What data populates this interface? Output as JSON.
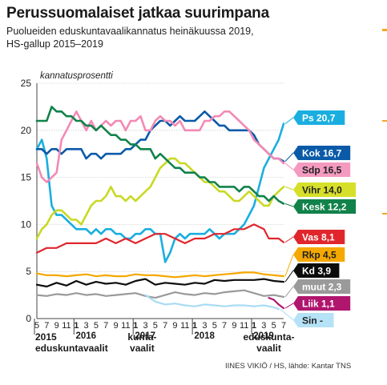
{
  "title": "Perussuomalaiset jatkaa suurimpana",
  "subtitle_line1": "Puolueiden eduskuntavaalikannatus heinäkuussa 2019,",
  "subtitle_line2": "HS-gallup 2015–2019",
  "credit": "IINES VIKIÖ / HS, lähde: Kantar TNS",
  "chart_data": {
    "type": "line",
    "ylabel": "kannatusprosentti",
    "ylim": [
      0,
      25
    ],
    "yticks": [
      0,
      5,
      10,
      15,
      20,
      25
    ],
    "xlim": [
      0,
      50
    ],
    "xticks": [
      {
        "x": 0,
        "label": "5",
        "bold": false
      },
      {
        "x": 2,
        "label": "7",
        "bold": false
      },
      {
        "x": 4,
        "label": "9",
        "bold": false
      },
      {
        "x": 6,
        "label": "11",
        "bold": false
      },
      {
        "x": 8,
        "label": "1",
        "bold": true
      },
      {
        "x": 10,
        "label": "3",
        "bold": false
      },
      {
        "x": 12,
        "label": "5",
        "bold": false
      },
      {
        "x": 14,
        "label": "7",
        "bold": false
      },
      {
        "x": 16,
        "label": "9",
        "bold": false
      },
      {
        "x": 18,
        "label": "11",
        "bold": false
      },
      {
        "x": 20,
        "label": "1",
        "bold": true
      },
      {
        "x": 22,
        "label": "3",
        "bold": false
      },
      {
        "x": 24,
        "label": "5",
        "bold": false
      },
      {
        "x": 26,
        "label": "7",
        "bold": false
      },
      {
        "x": 28,
        "label": "9",
        "bold": false
      },
      {
        "x": 30,
        "label": "11",
        "bold": false
      },
      {
        "x": 32,
        "label": "1",
        "bold": true
      },
      {
        "x": 34,
        "label": "3",
        "bold": false
      },
      {
        "x": 36,
        "label": "5",
        "bold": false
      },
      {
        "x": 38,
        "label": "7",
        "bold": false
      },
      {
        "x": 40,
        "label": "9",
        "bold": false
      },
      {
        "x": 42,
        "label": "11",
        "bold": false
      },
      {
        "x": 44,
        "label": "1",
        "bold": true
      },
      {
        "x": 46,
        "label": "3",
        "bold": false
      },
      {
        "x": 48,
        "label": "5",
        "bold": false
      },
      {
        "x": 50,
        "label": "7",
        "bold": false
      }
    ],
    "year_labels": [
      {
        "x": 0,
        "label": "2015"
      },
      {
        "x": 8,
        "label": "2016"
      },
      {
        "x": 20,
        "label": "2017"
      },
      {
        "x": 32,
        "label": "2018"
      },
      {
        "x": 44,
        "label": "2019"
      }
    ],
    "annotations": [
      {
        "x": 0,
        "lines": [
          "2015",
          "eduskuntavaalit"
        ]
      },
      {
        "x": 21,
        "lines": [
          "kunta-",
          "vaalit"
        ]
      },
      {
        "x": 47,
        "lines": [
          "eduskunta-",
          "vaalit"
        ]
      }
    ],
    "series": [
      {
        "name": "Ps",
        "label": "Ps 20,7",
        "color": "#1aaee0",
        "label_color": "#1aaee0",
        "text_color": "#ffffff",
        "width": 2.6,
        "x": [
          0,
          1,
          2,
          3,
          4,
          5,
          6,
          7,
          8,
          9,
          10,
          11,
          12,
          13,
          14,
          15,
          16,
          17,
          18,
          19,
          20,
          21,
          22,
          23,
          24,
          25,
          26,
          27,
          28,
          29,
          30,
          31,
          32,
          33,
          34,
          35,
          36,
          37,
          38,
          39,
          40,
          41,
          42,
          43,
          44,
          45,
          46,
          47,
          48,
          49,
          50
        ],
        "y": [
          18,
          19,
          17,
          12,
          11,
          11,
          10.5,
          10,
          9.5,
          9.5,
          9.5,
          9,
          9.5,
          9,
          9.5,
          9.5,
          9,
          9,
          8.5,
          8.5,
          9,
          9,
          9.5,
          9.5,
          9,
          9,
          6,
          7,
          8.5,
          9,
          8.5,
          9,
          9,
          9,
          9,
          9.5,
          9,
          8.5,
          9,
          9,
          9,
          9.5,
          10,
          11,
          12,
          14,
          16,
          17,
          18,
          19,
          20.7
        ]
      },
      {
        "name": "Kok",
        "label": "Kok 16,7",
        "color": "#0a5aa8",
        "label_color": "#0a5aa8",
        "text_color": "#ffffff",
        "width": 2.6,
        "x": [
          0,
          1,
          2,
          3,
          4,
          5,
          6,
          7,
          8,
          9,
          10,
          11,
          12,
          13,
          14,
          15,
          16,
          17,
          18,
          19,
          20,
          21,
          22,
          23,
          24,
          25,
          26,
          27,
          28,
          29,
          30,
          31,
          32,
          33,
          34,
          35,
          36,
          37,
          38,
          39,
          40,
          41,
          42,
          43,
          44,
          45,
          46,
          47,
          48,
          49,
          50
        ],
        "y": [
          18,
          18,
          17.5,
          18,
          18,
          17.5,
          18,
          18,
          18,
          18,
          17,
          17.5,
          17.5,
          17,
          17.5,
          17.5,
          17.5,
          17.5,
          18,
          18,
          18.5,
          19,
          19,
          20,
          20.5,
          21,
          21,
          20.5,
          21,
          21.5,
          21,
          21,
          21,
          21.5,
          22,
          21.5,
          21,
          20.5,
          20.5,
          20,
          20,
          20,
          20,
          20,
          19.5,
          18.5,
          18,
          17.5,
          17,
          17,
          16.7
        ]
      },
      {
        "name": "Sdp",
        "label": "Sdp 16,5",
        "color": "#f28ab4",
        "label_color": "#f49ac0",
        "text_color": "#222222",
        "width": 2.6,
        "x": [
          0,
          1,
          2,
          3,
          4,
          5,
          6,
          7,
          8,
          9,
          10,
          11,
          12,
          13,
          14,
          15,
          16,
          17,
          18,
          19,
          20,
          21,
          22,
          23,
          24,
          25,
          26,
          27,
          28,
          29,
          30,
          31,
          32,
          33,
          34,
          35,
          36,
          37,
          38,
          39,
          40,
          41,
          42,
          43,
          44,
          45,
          46,
          47,
          48,
          49,
          50
        ],
        "y": [
          16.5,
          15,
          14.5,
          15,
          15.5,
          19,
          20,
          21,
          22,
          21,
          20,
          21,
          20,
          20.5,
          21,
          20.5,
          21,
          21,
          20,
          21,
          21,
          21.5,
          20,
          20,
          21,
          21.5,
          21,
          21,
          20.5,
          21,
          20,
          20,
          20,
          20,
          21,
          21,
          21.5,
          21.5,
          22,
          22,
          21.5,
          21,
          20.5,
          20,
          19,
          18.5,
          18,
          17.5,
          17,
          17,
          16.5
        ]
      },
      {
        "name": "Vihr",
        "label": "Vihr 14,0",
        "color": "#c9d924",
        "label_color": "#d6e02a",
        "text_color": "#222222",
        "width": 2.6,
        "x": [
          0,
          1,
          2,
          3,
          4,
          5,
          6,
          7,
          8,
          9,
          10,
          11,
          12,
          13,
          14,
          15,
          16,
          17,
          18,
          19,
          20,
          21,
          22,
          23,
          24,
          25,
          26,
          27,
          28,
          29,
          30,
          31,
          32,
          33,
          34,
          35,
          36,
          37,
          38,
          39,
          40,
          41,
          42,
          43,
          44,
          45,
          46,
          47,
          48,
          49,
          50
        ],
        "y": [
          8.5,
          9.5,
          10,
          11,
          11.5,
          11.5,
          11,
          10.5,
          10.5,
          10,
          11,
          12,
          12.5,
          12.5,
          13,
          14,
          13,
          13,
          12.5,
          13,
          12.5,
          13,
          13.5,
          14,
          15,
          16,
          16.5,
          17,
          17,
          16.5,
          16.5,
          16,
          15.5,
          15,
          14.5,
          14.5,
          14,
          13.5,
          13.5,
          13,
          12.5,
          12.5,
          13,
          13.5,
          13,
          12.5,
          12,
          12,
          13,
          13.5,
          14
        ]
      },
      {
        "name": "Kesk",
        "label": "Kesk 12,2",
        "color": "#11824a",
        "label_color": "#11824a",
        "text_color": "#ffffff",
        "width": 2.6,
        "x": [
          0,
          1,
          2,
          3,
          4,
          5,
          6,
          7,
          8,
          9,
          10,
          11,
          12,
          13,
          14,
          15,
          16,
          17,
          18,
          19,
          20,
          21,
          22,
          23,
          24,
          25,
          26,
          27,
          28,
          29,
          30,
          31,
          32,
          33,
          34,
          35,
          36,
          37,
          38,
          39,
          40,
          41,
          42,
          43,
          44,
          45,
          46,
          47,
          48,
          49,
          50
        ],
        "y": [
          21,
          21,
          21,
          22.5,
          22,
          22,
          21.5,
          21.5,
          21,
          21,
          20.5,
          20.5,
          20,
          20.5,
          20,
          19.5,
          19.5,
          19,
          19,
          18.5,
          18.5,
          18,
          18,
          18,
          17,
          17.5,
          17,
          16.5,
          16,
          16,
          15.5,
          15.5,
          15.5,
          15,
          15,
          14.5,
          14.5,
          14,
          14,
          14,
          14,
          13.5,
          14,
          14,
          13.5,
          13,
          13,
          12.5,
          13,
          12.5,
          12.2
        ]
      },
      {
        "name": "Vas",
        "label": "Vas 8,1",
        "color": "#e0262c",
        "label_color": "#e0262c",
        "text_color": "#ffffff",
        "width": 2.2,
        "x": [
          0,
          2,
          4,
          6,
          8,
          10,
          12,
          14,
          16,
          18,
          20,
          22,
          24,
          26,
          28,
          30,
          32,
          34,
          36,
          38,
          40,
          42,
          44,
          46,
          47,
          48,
          49,
          50
        ],
        "y": [
          7,
          7.5,
          7.5,
          8,
          8,
          8,
          8,
          8.5,
          8,
          8.5,
          8,
          8.5,
          9,
          9,
          8.5,
          8,
          8.5,
          8.5,
          9,
          9,
          9.5,
          9.5,
          10,
          9.5,
          8.5,
          8.5,
          8.5,
          8.1
        ]
      },
      {
        "name": "Rkp",
        "label": "Rkp 4,5",
        "color": "#f5a800",
        "label_color": "#f5a800",
        "text_color": "#222222",
        "width": 2.2,
        "x": [
          0,
          2,
          4,
          6,
          8,
          10,
          12,
          14,
          16,
          18,
          20,
          22,
          24,
          26,
          28,
          30,
          32,
          34,
          36,
          38,
          40,
          42,
          44,
          46,
          48,
          50
        ],
        "y": [
          4.8,
          4.6,
          4.6,
          4.5,
          4.6,
          4.7,
          4.5,
          4.6,
          4.5,
          4.5,
          4.7,
          4.6,
          4.6,
          4.5,
          4.4,
          4.5,
          4.6,
          4.5,
          4.6,
          4.7,
          4.8,
          4.9,
          4.9,
          4.7,
          4.6,
          4.5
        ]
      },
      {
        "name": "Kd",
        "label": "Kd 3,9",
        "color": "#0c0c0c",
        "label_color": "#0c0c0c",
        "text_color": "#ffffff",
        "width": 2.2,
        "x": [
          0,
          2,
          4,
          6,
          8,
          10,
          12,
          14,
          16,
          18,
          20,
          22,
          24,
          26,
          28,
          30,
          32,
          34,
          36,
          38,
          40,
          42,
          44,
          46,
          48,
          50
        ],
        "y": [
          3.6,
          3.4,
          3.8,
          3.5,
          4,
          3.6,
          3.9,
          3.7,
          3.8,
          3.6,
          4,
          4.2,
          3.6,
          3.8,
          3.7,
          3.6,
          3.8,
          3.7,
          4.1,
          4,
          4.1,
          4.1,
          4.1,
          4.2,
          4,
          3.9
        ]
      },
      {
        "name": "muut",
        "label": "muut 2,3",
        "color": "#9a9a9a",
        "label_color": "#9a9a9a",
        "text_color": "#ffffff",
        "width": 2.2,
        "x": [
          0,
          2,
          4,
          6,
          8,
          10,
          12,
          14,
          16,
          18,
          20,
          22,
          24,
          26,
          28,
          30,
          32,
          34,
          36,
          38,
          40,
          42,
          44,
          46,
          48,
          50
        ],
        "y": [
          2.5,
          2.4,
          2.6,
          2.5,
          2.7,
          2.5,
          2.6,
          2.4,
          2.5,
          2.6,
          2.7,
          2.4,
          2.2,
          2.5,
          2.8,
          2.6,
          2.5,
          2.7,
          2.6,
          2.8,
          2.9,
          3,
          2.7,
          2.4,
          2.5,
          2.3
        ]
      },
      {
        "name": "Liik",
        "label": "Liik 1,1",
        "color": "#b0166e",
        "label_color": "#b0166e",
        "text_color": "#ffffff",
        "width": 2.2,
        "x": [
          47,
          48,
          49,
          50
        ],
        "y": [
          2.2,
          2,
          1.5,
          1.1
        ]
      },
      {
        "name": "Sin",
        "label": "Sin -",
        "color": "#a9dcf3",
        "label_color": "#b5e2f6",
        "text_color": "#222222",
        "width": 2.2,
        "x": [
          22,
          24,
          26,
          28,
          30,
          32,
          34,
          36,
          38,
          40,
          42,
          44,
          46,
          48,
          49
        ],
        "y": [
          2.5,
          1.8,
          1.5,
          1.6,
          1.4,
          1.3,
          1.5,
          1.4,
          1.3,
          1.4,
          1.4,
          1.3,
          1.4,
          1.2,
          1.0
        ]
      }
    ]
  }
}
